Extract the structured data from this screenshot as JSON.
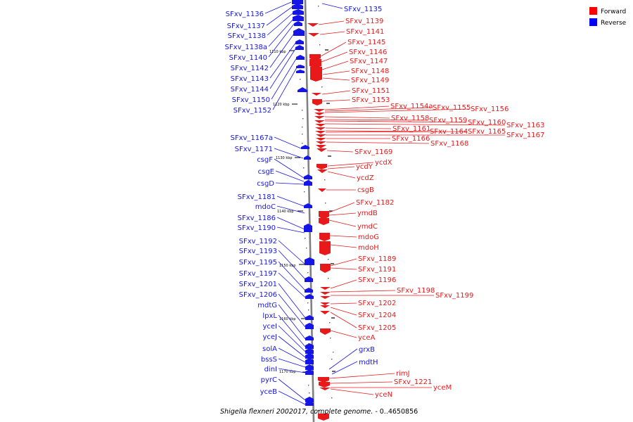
{
  "caption": {
    "organism": "Shigella flexneri 2002017, complete genome.",
    "range": " - 0..4650856"
  },
  "legend": [
    {
      "label": "Forward",
      "color": "#ff0000"
    },
    {
      "label": "Reverse",
      "color": "#0000ff"
    }
  ],
  "colors": {
    "forward": "#e8191b",
    "reverse": "#1515e6",
    "backbone": "#808080"
  },
  "ticks": [
    "1110 kbp",
    "1120 kbp",
    "1130 kbp",
    "1140 kbp",
    "1150 kbp",
    "1160 kbp",
    "1170 kbp"
  ],
  "genes_reverse": [
    "SFxv_1136",
    "SFxv_1137",
    "SFxv_1138",
    "SFxv_1138a",
    "SFxv_1140",
    "SFxv_1142",
    "SFxv_1143",
    "SFxv_1144",
    "SFxv_1150",
    "SFxv_1152",
    "SFxv_1167a",
    "SFxv_1171",
    "csgF",
    "csgE",
    "csgD",
    "SFxv_1181",
    "mdoC",
    "SFxv_1186",
    "SFxv_1190",
    "SFxv_1192",
    "SFxv_1193",
    "SFxv_1195",
    "SFxv_1197",
    "SFxv_1201",
    "SFxv_1206",
    "mdtG",
    "lpxL",
    "yceI",
    "yceJ",
    "solA",
    "bssS",
    "dinI",
    "pyrC",
    "yceB",
    "SFxv_1135",
    "grxB",
    "mdtH"
  ],
  "genes_forward": [
    "SFxv_1139",
    "SFxv_1141",
    "SFxv_1145",
    "SFxv_1146",
    "SFxv_1147",
    "SFxv_1148",
    "SFxv_1149",
    "SFxv_1151",
    "SFxv_1153",
    "SFxv_1154a",
    "SFxv_1155",
    "SFxv_1156",
    "SFxv_1158",
    "SFxv_1159",
    "SFxv_1160",
    "SFxv_1163",
    "SFxv_1161",
    "SFxv_1164",
    "SFxv_1165",
    "SFxv_1167",
    "SFxv_1166",
    "SFxv_1168",
    "SFxv_1169",
    "ycdX",
    "ycdY",
    "ycdZ",
    "csgB",
    "SFxv_1182",
    "ymdB",
    "ymdC",
    "mdoG",
    "mdoH",
    "SFxv_1189",
    "SFxv_1191",
    "SFxv_1196",
    "SFxv_1198",
    "SFxv_1199",
    "SFxv_1202",
    "SFxv_1204",
    "SFxv_1205",
    "yceA",
    "rimJ",
    "SFxv_1221",
    "yceM",
    "yceN"
  ]
}
